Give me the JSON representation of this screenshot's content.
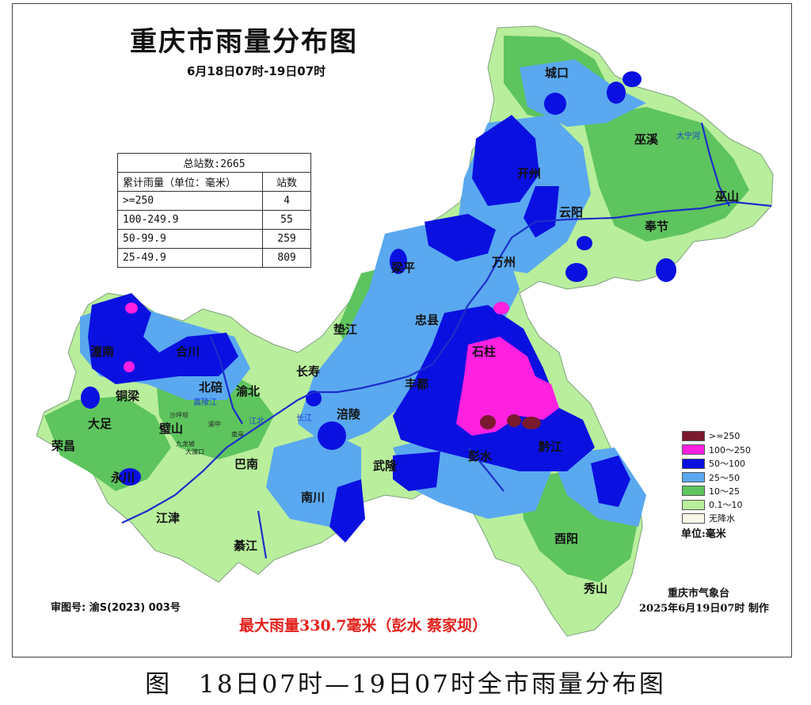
{
  "title": "重庆市雨量分布图",
  "subtitle": "6月18日07时-19日07时",
  "stats": {
    "total": "总站数:2665",
    "header": [
      "累计雨量（单位：毫米）",
      "站数"
    ],
    "rows": [
      [
        ">=250",
        "4"
      ],
      [
        "100-249.9",
        "55"
      ],
      [
        "50-99.9",
        "259"
      ],
      [
        "25-49.9",
        "809"
      ]
    ]
  },
  "places": {
    "chengkou": "城口",
    "wuxi": "巫溪",
    "kaizhou": "开州",
    "yunyang": "云阳",
    "wushan": "巫山",
    "fengjie": "奉节",
    "wanzhou": "万州",
    "liangping": "梁平",
    "zhongxian": "忠县",
    "dianjiang": "垫江",
    "shizhu": "石柱",
    "changshou": "长寿",
    "fengdu": "丰都",
    "fuling": "涪陵",
    "tongnan": "潼南",
    "hechuan": "合川",
    "beibei": "北碚",
    "yubei": "渝北",
    "tongliang": "铜梁",
    "dazu": "大足",
    "bishan": "璧山",
    "rongchang": "荣昌",
    "yongchuan": "永川",
    "banan": "巴南",
    "wulong": "武隆",
    "pengshui": "彭水",
    "qianjiang": "黔江",
    "nanchuan": "南川",
    "jiangjin": "江津",
    "qijiang": "綦江",
    "youyang": "酉阳",
    "xiushan": "秀山"
  },
  "rivers": {
    "daning": "大宁河",
    "jialing": "嘉陵江",
    "changjiang": "长江",
    "jiangbei": "江北"
  },
  "districts": {
    "shapingba": "沙坪坝",
    "yuzhong": "渝中",
    "nanan": "南岸",
    "jiulongpo": "九龙坡",
    "dadukou": "大渡口"
  },
  "legend": {
    "items": [
      {
        "label": ">=250",
        "color": "#7a1a2e"
      },
      {
        "label": "100～250",
        "color": "#ff20e0"
      },
      {
        "label": "50～100",
        "color": "#0a10e0"
      },
      {
        "label": "25～50",
        "color": "#5aa8f0"
      },
      {
        "label": "10～25",
        "color": "#5ec45e"
      },
      {
        "label": "0.1～10",
        "color": "#b8ee9c"
      },
      {
        "label": "无降水",
        "color": "#fbf7e8"
      }
    ],
    "unit": "单位:毫米"
  },
  "agency": "重庆市气象台",
  "made_date": "2025年6月19日07时 制作",
  "review_no": "审图号: 渝S(2023) 003号",
  "max_rain": "最大雨量330.7毫米（彭水 蔡家坝）",
  "caption": "图　18日07时—19日07时全市雨量分布图"
}
